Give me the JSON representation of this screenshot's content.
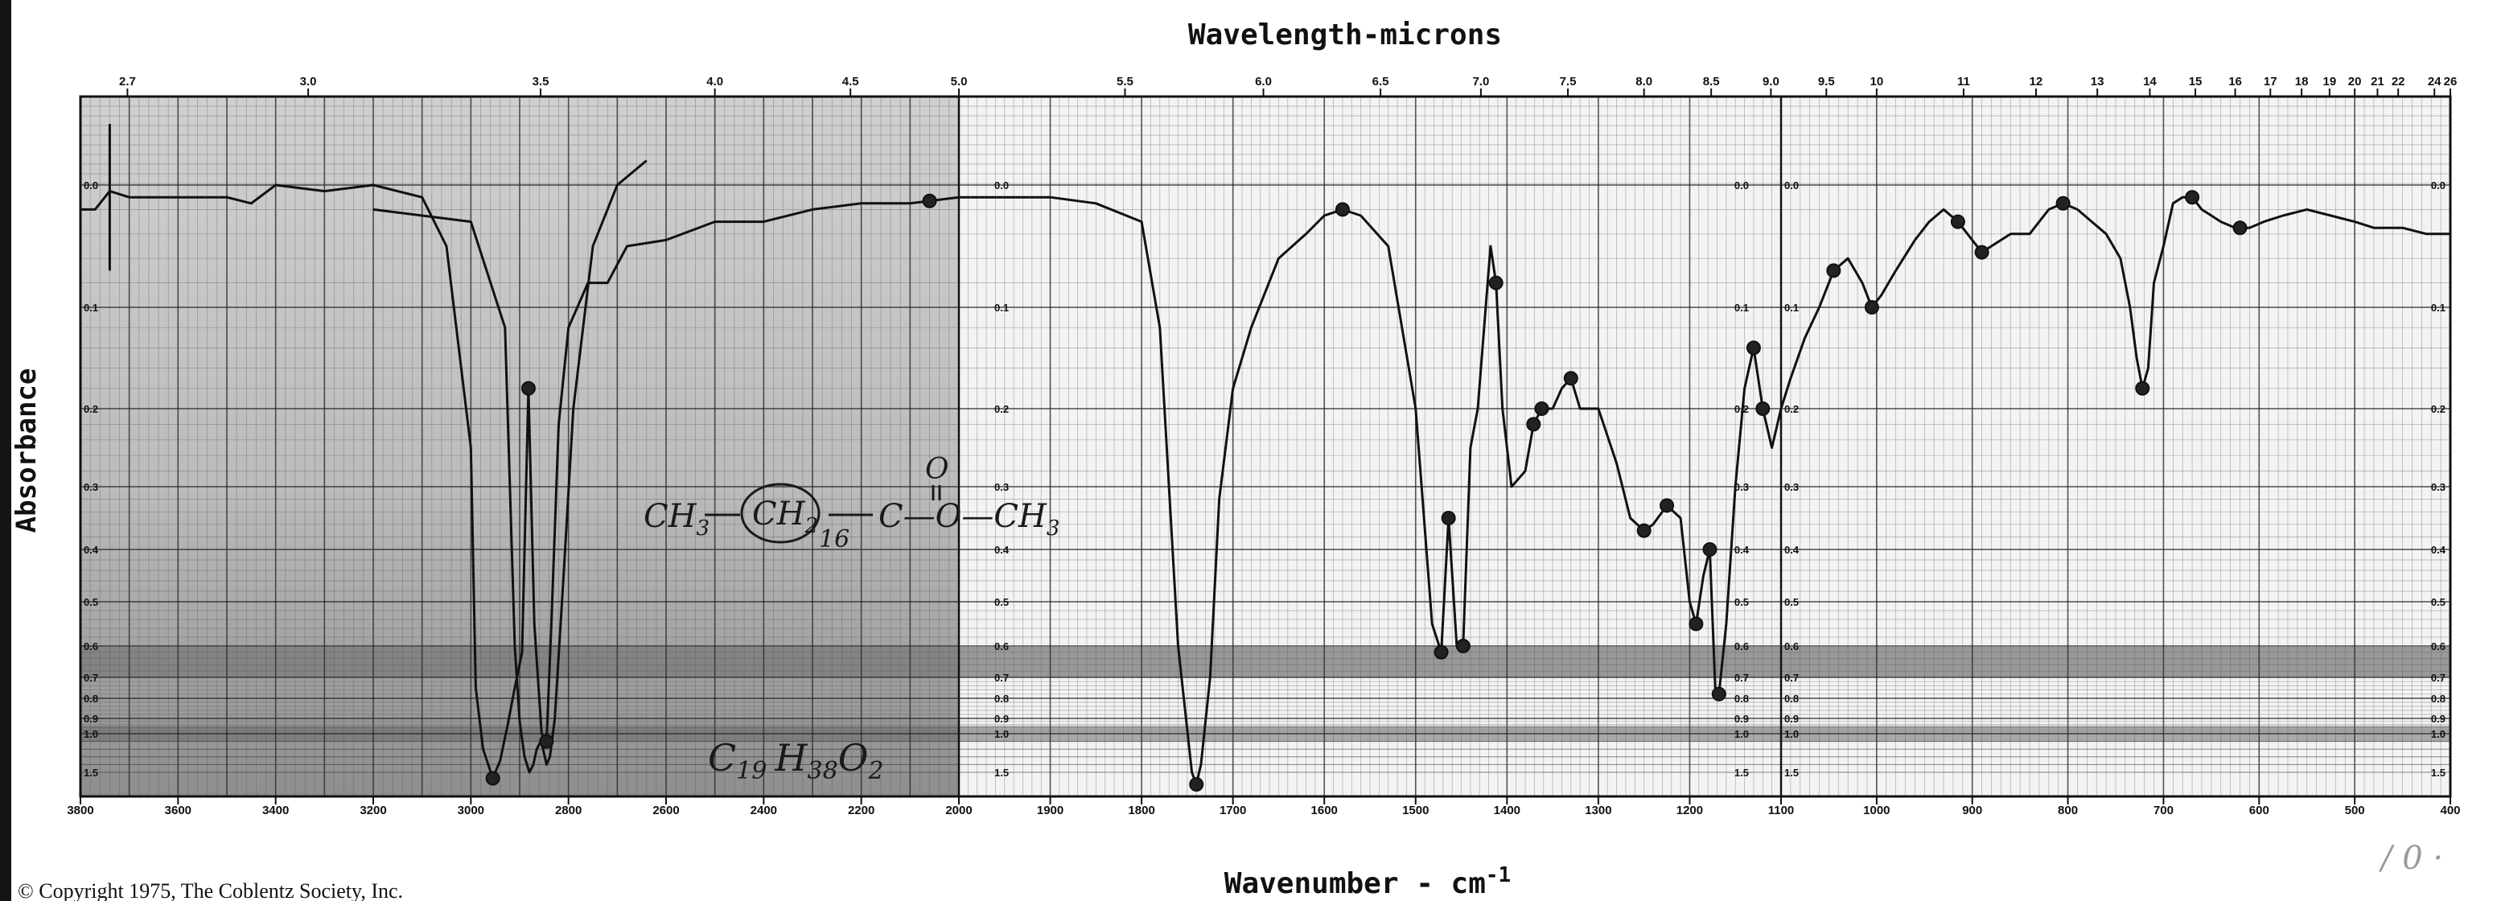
{
  "top_axis_title": "Wavelength-microns",
  "bottom_axis_title": "Wavenumber - cm",
  "bottom_axis_title_sup": "-1",
  "y_axis_title": "Absorbance",
  "copyright": "© Copyright 1975, The Coblentz Society, Inc.",
  "annotations": {
    "formula": "CH3-(CH2)16-C(=O)-O-CH3",
    "formula_parts": {
      "ch3": "CH",
      "ch3_sub": "3",
      "ch2": "CH",
      "ch2_sub": "2",
      "repeat_sub": "16",
      "carbonyl_o": "O",
      "ester": "C—O—CH",
      "ester_sub": "3"
    },
    "molecular_formula": "C19 H38 O2",
    "molecular_formula_parts": {
      "c": "C",
      "c_sub": "19",
      "h": "H",
      "h_sub": "38",
      "o": "O",
      "o_sub": "2"
    },
    "corner_mark": "/ 0 ·"
  },
  "chart_data": {
    "type": "line",
    "title": "",
    "xlabel": "Wavenumber - cm-1",
    "x2label": "Wavelength-microns",
    "ylabel": "Absorbance",
    "grid": true,
    "x_segments": [
      {
        "from_cm": 3800,
        "to_cm": 2000,
        "ticks": [
          "3800",
          "3600",
          "3400",
          "3200",
          "3000",
          "2800",
          "2600",
          "2400",
          "2200",
          "2000"
        ]
      },
      {
        "from_cm": 2000,
        "to_cm": 1100,
        "ticks": [
          "1900",
          "1800",
          "1700",
          "1600",
          "1500",
          "1400",
          "1300",
          "1200",
          "1100"
        ]
      },
      {
        "from_cm": 1100,
        "to_cm": 400,
        "ticks": [
          "1000",
          "900",
          "800",
          "700",
          "600",
          "500",
          "400"
        ]
      }
    ],
    "top_ticks_microns": [
      "2.7",
      "3.0",
      "3.5",
      "4.0",
      "4.5",
      "5.0",
      "5.5",
      "6.0",
      "6.5",
      "7.0",
      "7.5",
      "8.0",
      "8.5",
      "9.0",
      "9.5",
      "10",
      "11",
      "12",
      "13",
      "14",
      "15",
      "16",
      "17",
      "18",
      "19",
      "20",
      "21",
      "22",
      "24",
      "26"
    ],
    "y_ticks": [
      "0.0",
      "0.1",
      "0.2",
      "0.3",
      "0.4",
      "0.5",
      "0.6",
      "0.7",
      "0.8",
      "0.9",
      "1.0",
      "1.5"
    ],
    "ylim": [
      0,
      1.5
    ],
    "series": [
      {
        "points": [
          [
            3800,
            0.02
          ],
          [
            3770,
            0.02
          ],
          [
            3740,
            0.005
          ],
          [
            3700,
            0.01
          ],
          [
            3600,
            0.01
          ],
          [
            3500,
            0.01
          ],
          [
            3450,
            0.015
          ],
          [
            3400,
            0.0
          ],
          [
            3300,
            0.005
          ],
          [
            3200,
            0.0
          ],
          [
            3100,
            0.01
          ],
          [
            3050,
            0.05
          ],
          [
            3000,
            0.25
          ],
          [
            2990,
            0.75
          ],
          [
            2975,
            1.2
          ],
          [
            2955,
            1.55
          ],
          [
            2940,
            1.35
          ],
          [
            2925,
            0.95
          ],
          [
            2910,
            0.75
          ],
          [
            2895,
            0.62
          ],
          [
            2882,
            0.18
          ],
          [
            2870,
            0.55
          ],
          [
            2855,
            1.0
          ],
          [
            2845,
            1.1
          ],
          [
            2835,
            0.55
          ],
          [
            2820,
            0.22
          ],
          [
            2800,
            0.12
          ],
          [
            2760,
            0.08
          ],
          [
            2720,
            0.08
          ],
          [
            2680,
            0.05
          ],
          [
            2600,
            0.045
          ],
          [
            2500,
            0.03
          ],
          [
            2400,
            0.03
          ],
          [
            2300,
            0.02
          ],
          [
            2200,
            0.015
          ],
          [
            2100,
            0.015
          ],
          [
            2000,
            0.01
          ],
          [
            1950,
            0.01
          ],
          [
            1900,
            0.01
          ],
          [
            1850,
            0.015
          ],
          [
            1800,
            0.03
          ],
          [
            1780,
            0.12
          ],
          [
            1760,
            0.6
          ],
          [
            1745,
            1.5
          ],
          [
            1740,
            1.6
          ],
          [
            1735,
            1.4
          ],
          [
            1725,
            0.7
          ],
          [
            1715,
            0.32
          ],
          [
            1700,
            0.18
          ],
          [
            1680,
            0.12
          ],
          [
            1650,
            0.06
          ],
          [
            1620,
            0.04
          ],
          [
            1600,
            0.025
          ],
          [
            1580,
            0.02
          ],
          [
            1560,
            0.025
          ],
          [
            1530,
            0.05
          ],
          [
            1500,
            0.2
          ],
          [
            1482,
            0.55
          ],
          [
            1472,
            0.62
          ],
          [
            1464,
            0.35
          ],
          [
            1455,
            0.6
          ],
          [
            1448,
            0.6
          ],
          [
            1440,
            0.25
          ],
          [
            1432,
            0.2
          ],
          [
            1425,
            0.12
          ],
          [
            1418,
            0.05
          ],
          [
            1412,
            0.08
          ],
          [
            1405,
            0.2
          ],
          [
            1395,
            0.3
          ],
          [
            1380,
            0.28
          ],
          [
            1371,
            0.22
          ],
          [
            1362,
            0.2
          ],
          [
            1350,
            0.2
          ],
          [
            1340,
            0.18
          ],
          [
            1330,
            0.17
          ],
          [
            1320,
            0.2
          ],
          [
            1300,
            0.2
          ],
          [
            1280,
            0.27
          ],
          [
            1265,
            0.35
          ],
          [
            1250,
            0.37
          ],
          [
            1240,
            0.36
          ],
          [
            1225,
            0.33
          ],
          [
            1210,
            0.35
          ],
          [
            1200,
            0.5
          ],
          [
            1193,
            0.55
          ],
          [
            1185,
            0.45
          ],
          [
            1178,
            0.4
          ],
          [
            1172,
            0.75
          ],
          [
            1168,
            0.78
          ],
          [
            1160,
            0.55
          ],
          [
            1150,
            0.3
          ],
          [
            1140,
            0.18
          ],
          [
            1130,
            0.14
          ],
          [
            1120,
            0.2
          ],
          [
            1110,
            0.25
          ],
          [
            1100,
            0.2
          ],
          [
            1090,
            0.17
          ],
          [
            1075,
            0.13
          ],
          [
            1060,
            0.1
          ],
          [
            1045,
            0.07
          ],
          [
            1030,
            0.06
          ],
          [
            1015,
            0.08
          ],
          [
            1005,
            0.1
          ],
          [
            995,
            0.09
          ],
          [
            980,
            0.07
          ],
          [
            960,
            0.045
          ],
          [
            945,
            0.03
          ],
          [
            930,
            0.02
          ],
          [
            915,
            0.03
          ],
          [
            900,
            0.045
          ],
          [
            890,
            0.055
          ],
          [
            880,
            0.05
          ],
          [
            860,
            0.04
          ],
          [
            840,
            0.04
          ],
          [
            820,
            0.02
          ],
          [
            805,
            0.015
          ],
          [
            790,
            0.02
          ],
          [
            775,
            0.03
          ],
          [
            760,
            0.04
          ],
          [
            745,
            0.06
          ],
          [
            735,
            0.1
          ],
          [
            728,
            0.15
          ],
          [
            722,
            0.18
          ],
          [
            716,
            0.16
          ],
          [
            710,
            0.08
          ],
          [
            700,
            0.05
          ],
          [
            690,
            0.015
          ],
          [
            680,
            0.01
          ],
          [
            670,
            0.01
          ],
          [
            660,
            0.02
          ],
          [
            650,
            0.025
          ],
          [
            640,
            0.03
          ],
          [
            625,
            0.035
          ],
          [
            610,
            0.035
          ],
          [
            595,
            0.03
          ],
          [
            575,
            0.025
          ],
          [
            550,
            0.02
          ],
          [
            525,
            0.025
          ],
          [
            500,
            0.03
          ],
          [
            480,
            0.035
          ],
          [
            450,
            0.035
          ],
          [
            425,
            0.04
          ],
          [
            400,
            0.04
          ]
        ]
      }
    ],
    "extra_trace": [
      [
        3200,
        0.02
      ],
      [
        3000,
        0.03
      ],
      [
        2930,
        0.12
      ],
      [
        2910,
        0.6
      ],
      [
        2900,
        0.92
      ],
      [
        2890,
        1.3
      ],
      [
        2880,
        1.5
      ],
      [
        2872,
        1.4
      ],
      [
        2865,
        1.2
      ],
      [
        2857,
        1.1
      ],
      [
        2852,
        1.2
      ],
      [
        2845,
        1.4
      ],
      [
        2838,
        1.3
      ],
      [
        2828,
        0.9
      ],
      [
        2810,
        0.45
      ],
      [
        2790,
        0.2
      ],
      [
        2750,
        0.05
      ],
      [
        2700,
        0.0
      ],
      [
        2640,
        -0.02
      ]
    ],
    "marked_peaks_cm": [
      2955,
      2882,
      2845,
      1740,
      1472,
      1464,
      1448,
      1412,
      1371,
      1362,
      1330,
      1250,
      1225,
      1193,
      1178,
      1168,
      1130,
      1120,
      1045,
      1005,
      915,
      890,
      805,
      722,
      670,
      620,
      2060,
      1580
    ]
  }
}
